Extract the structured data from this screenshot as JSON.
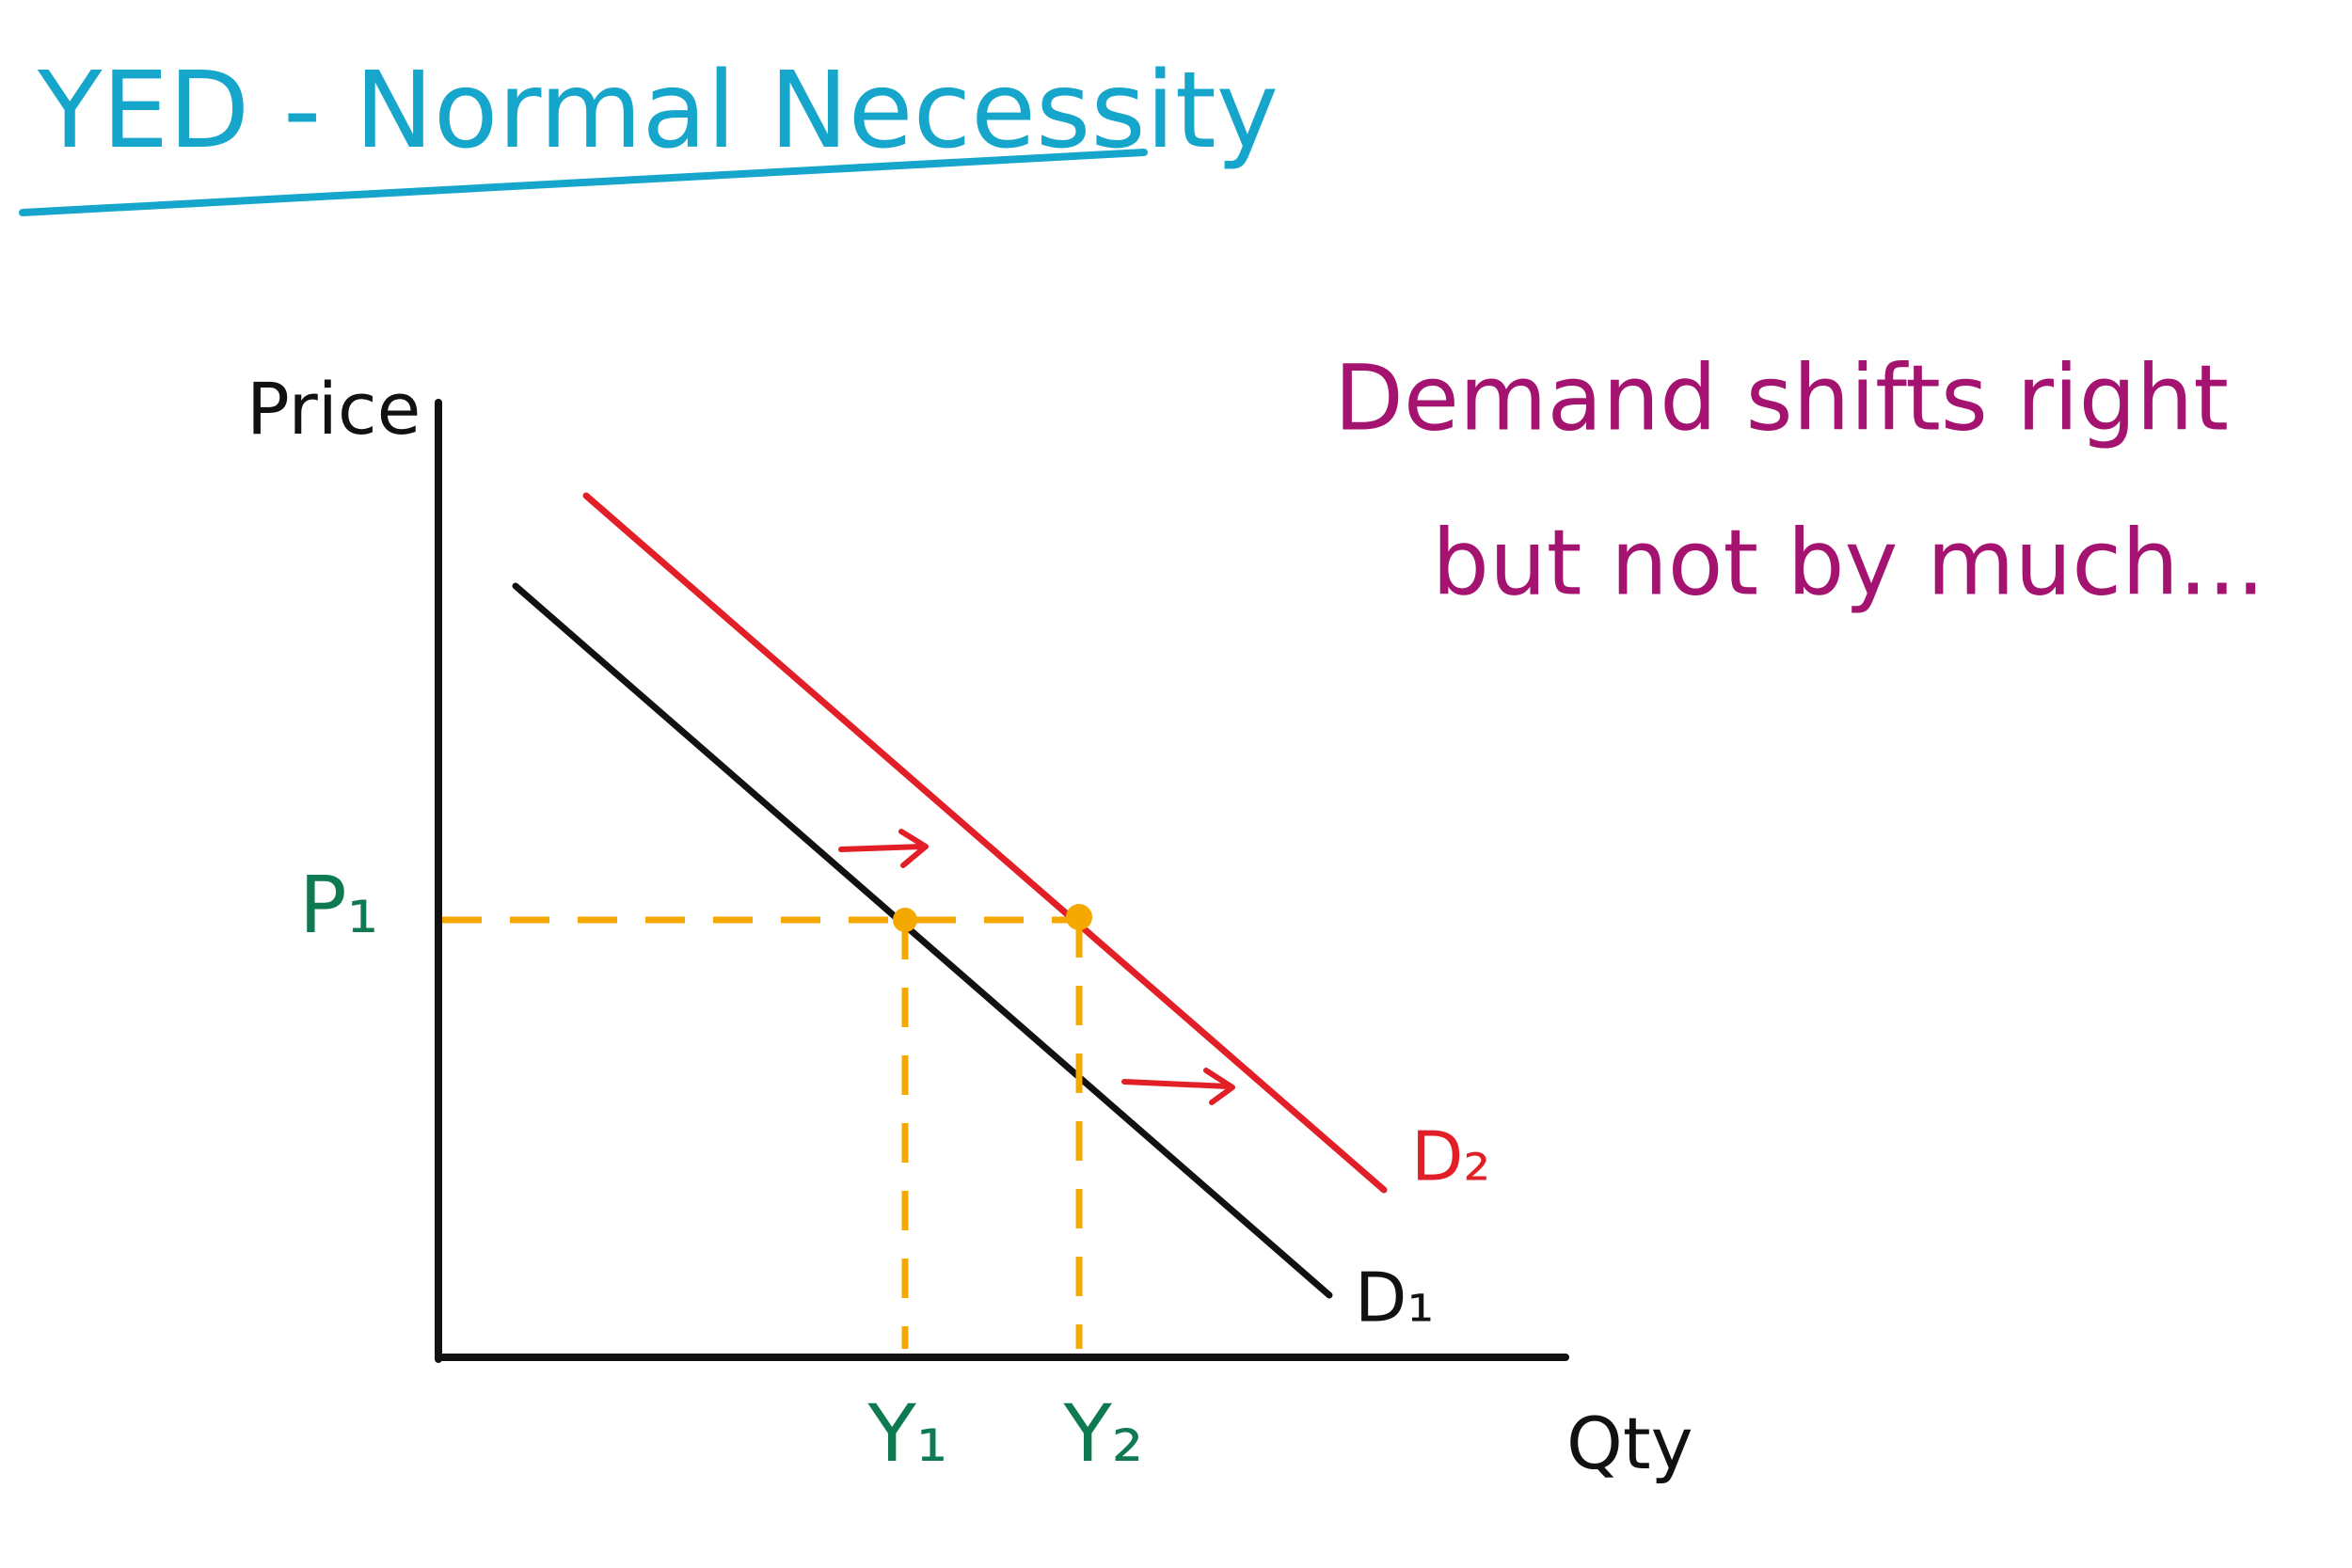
{
  "title": "YED - Normal Necessity",
  "axes": {
    "y_label": "Price",
    "x_label": "Qty"
  },
  "labels": {
    "price_level": "P₁",
    "quantity_1": "Y₁",
    "quantity_2": "Y₂",
    "demand_1": "D₁",
    "demand_2": "D₂"
  },
  "annotation": [
    "Demand shifts right",
    "but not by much..."
  ]
}
